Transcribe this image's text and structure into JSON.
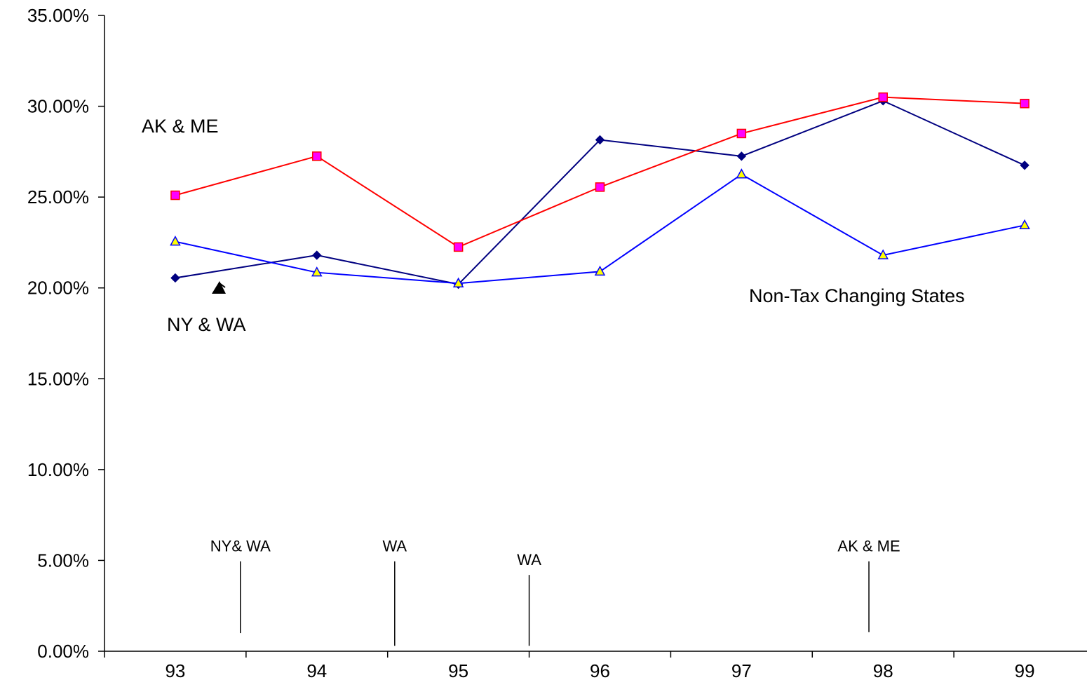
{
  "chart_data": {
    "type": "line",
    "title": "",
    "xlabel": "",
    "ylabel": "",
    "categories": [
      "93",
      "94",
      "95",
      "96",
      "97",
      "98",
      "99"
    ],
    "ylim": [
      0,
      35
    ],
    "ytick_labels": [
      "0.00%",
      "5.00%",
      "10.00%",
      "15.00%",
      "20.00%",
      "25.00%",
      "30.00%",
      "35.00%"
    ],
    "grid": false,
    "legend": "none",
    "series": [
      {
        "key": "ny_wa",
        "values": [
          20.55,
          21.8,
          20.2,
          28.15,
          27.25,
          30.3,
          26.75
        ],
        "color": "#000080",
        "marker": "diamond"
      },
      {
        "key": "ak_me",
        "values": [
          25.1,
          27.25,
          22.25,
          25.55,
          28.5,
          30.5,
          30.15
        ],
        "color": "#ff0000",
        "marker": "square"
      },
      {
        "key": "non_tax",
        "values": [
          22.55,
          20.85,
          20.25,
          20.9,
          26.25,
          21.8,
          23.45
        ],
        "color": "#0000ff",
        "marker": "triangle"
      }
    ],
    "annotations": {
      "ak_me": "AK & ME",
      "ny_wa": "NY & WA",
      "non_tax": "Non-Tax Changing States"
    },
    "events": [
      {
        "text": "NY& WA",
        "x": 0.96,
        "ytop": 4.95,
        "ybot": 1.0
      },
      {
        "text": "WA",
        "x": 2.05,
        "ytop": 4.95,
        "ybot": 0.3
      },
      {
        "text": "WA",
        "x": 3.0,
        "ytop": 4.2,
        "ybot": 0.3
      },
      {
        "text": "AK & ME",
        "x": 5.4,
        "ytop": 4.95,
        "ybot": 1.05
      }
    ]
  }
}
